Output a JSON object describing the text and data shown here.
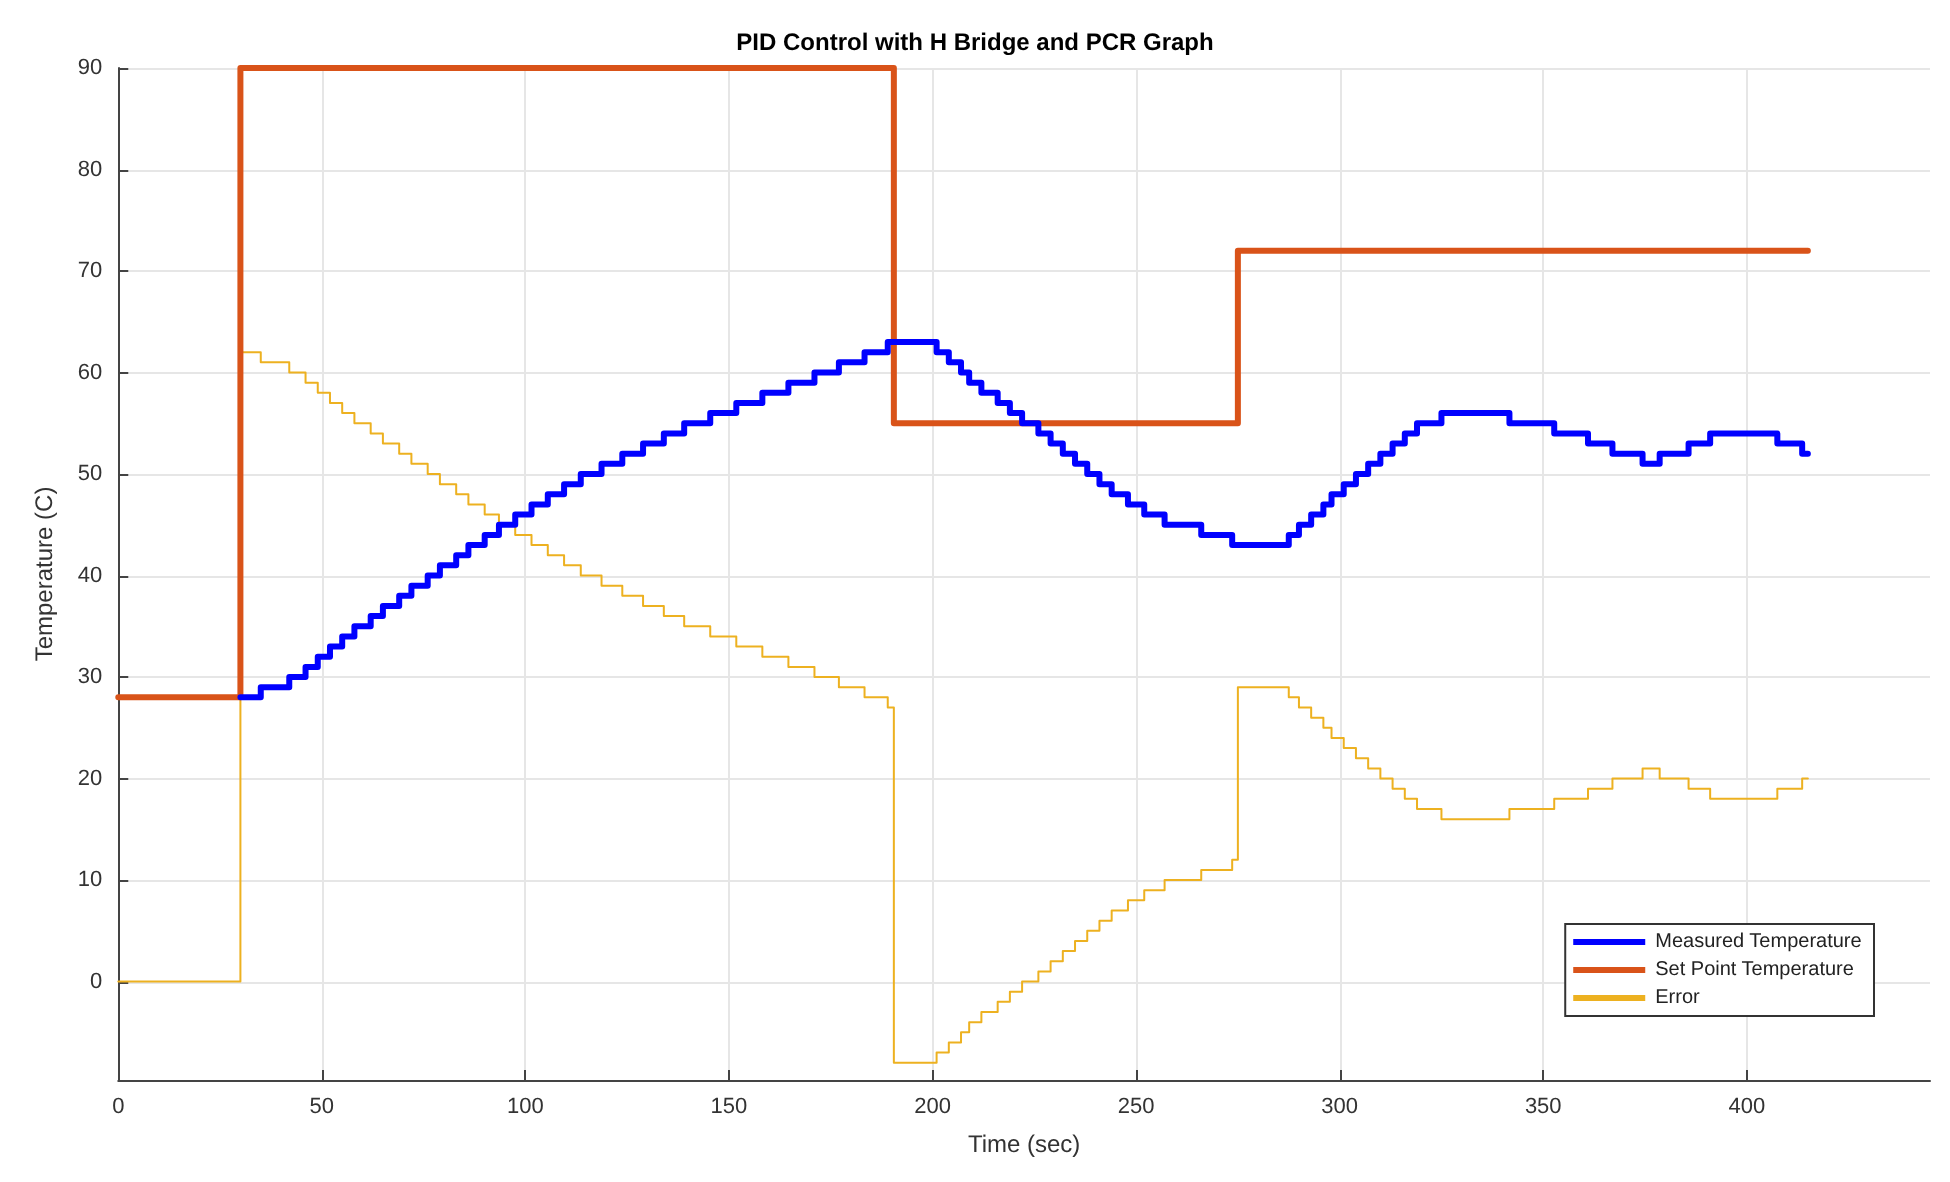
{
  "chart_data": {
    "type": "step",
    "title": "PID Control with H Bridge and PCR Graph",
    "xlabel": "Time (sec)",
    "ylabel": "Temperature (C)",
    "xlim": [
      0,
      445
    ],
    "xticks": [
      0,
      50,
      100,
      150,
      200,
      250,
      300,
      350,
      400
    ],
    "ylim": [
      -9.7,
      90
    ],
    "yticks": [
      0,
      10,
      20,
      30,
      40,
      50,
      60,
      70,
      80,
      90
    ],
    "grid": true,
    "legend": "bottom right",
    "marker": "none",
    "line_style": "solid",
    "series": [
      {
        "name": "Measured Temperature",
        "color": "#0000ff",
        "x": [
          30,
          35,
          42,
          46,
          49,
          52,
          55,
          58,
          62,
          65,
          69,
          72,
          76,
          79,
          83,
          86,
          90,
          93.5,
          97.5,
          101.5,
          105.5,
          109.5,
          113.6,
          118.7,
          123.8,
          128.9,
          134,
          139,
          145.4,
          151.8,
          158.2,
          164.6,
          171,
          177,
          183.3,
          189,
          201,
          204,
          207,
          209,
          212,
          216,
          219,
          222,
          226,
          229,
          232,
          235,
          238,
          241,
          244,
          248,
          252,
          257,
          266,
          273.6,
          287.5,
          290,
          293,
          296,
          298,
          301,
          304,
          307,
          310,
          313,
          316,
          319,
          325,
          341.7,
          352.7,
          361,
          367,
          374.4,
          378.6,
          385.7,
          391,
          407.5,
          413.6,
          415
        ],
        "values": [
          28,
          29,
          30,
          31,
          32,
          33,
          34,
          35,
          36,
          37,
          38,
          39,
          40,
          41,
          42,
          43,
          44,
          45,
          46,
          47,
          48,
          49,
          50,
          51,
          52,
          53,
          54,
          55,
          56,
          57,
          58,
          59,
          60,
          61,
          62,
          63,
          62,
          61,
          60,
          59,
          58,
          57,
          56,
          55,
          54,
          53,
          52,
          51,
          50,
          49,
          48,
          47,
          46,
          45,
          44,
          43,
          44,
          45,
          46,
          47,
          48,
          49,
          50,
          51,
          52,
          53,
          54,
          55,
          56,
          55,
          54,
          53,
          52,
          51,
          52,
          53,
          54,
          53,
          52,
          52
        ]
      },
      {
        "name": "Set Point Temperature",
        "color": "#d95319",
        "x": [
          0,
          30,
          190.5,
          275,
          415
        ],
        "values": [
          28,
          90,
          55,
          72,
          72
        ]
      },
      {
        "name": "Error",
        "color": "#edb120",
        "x": [
          0,
          30,
          35,
          42,
          46,
          49,
          52,
          55,
          58,
          62,
          65,
          69,
          72,
          76,
          79,
          83,
          86,
          90,
          93.5,
          97.5,
          101.5,
          105.5,
          109.5,
          113.6,
          118.7,
          123.8,
          128.9,
          134,
          139,
          145.4,
          151.8,
          158.2,
          164.6,
          171,
          177,
          183.3,
          189,
          190.5,
          201,
          204,
          207,
          209,
          212,
          216,
          219,
          222,
          226,
          229,
          232,
          235,
          238,
          241,
          244,
          248,
          252,
          257,
          266,
          273.6,
          275,
          287.5,
          290,
          293,
          296,
          298,
          301,
          304,
          307,
          310,
          313,
          316,
          319,
          325,
          341.7,
          352.7,
          361,
          367,
          374.4,
          378.6,
          385.7,
          391,
          407.5,
          413.6,
          415
        ],
        "values": [
          0,
          62,
          61,
          60,
          59,
          58,
          57,
          56,
          55,
          54,
          53,
          52,
          51,
          50,
          49,
          48,
          47,
          46,
          45,
          44,
          43,
          42,
          41,
          40,
          39,
          38,
          37,
          36,
          35,
          34,
          33,
          32,
          31,
          30,
          29,
          28,
          27,
          -8,
          -7,
          -6,
          -5,
          -4,
          -3,
          -2,
          -1,
          0,
          1,
          2,
          3,
          4,
          5,
          6,
          7,
          8,
          9,
          10,
          11,
          12,
          29,
          28,
          27,
          26,
          25,
          24,
          23,
          22,
          21,
          20,
          19,
          18,
          17,
          16,
          17,
          18,
          19,
          20,
          21,
          20,
          19,
          18,
          19,
          20,
          20
        ]
      }
    ]
  }
}
